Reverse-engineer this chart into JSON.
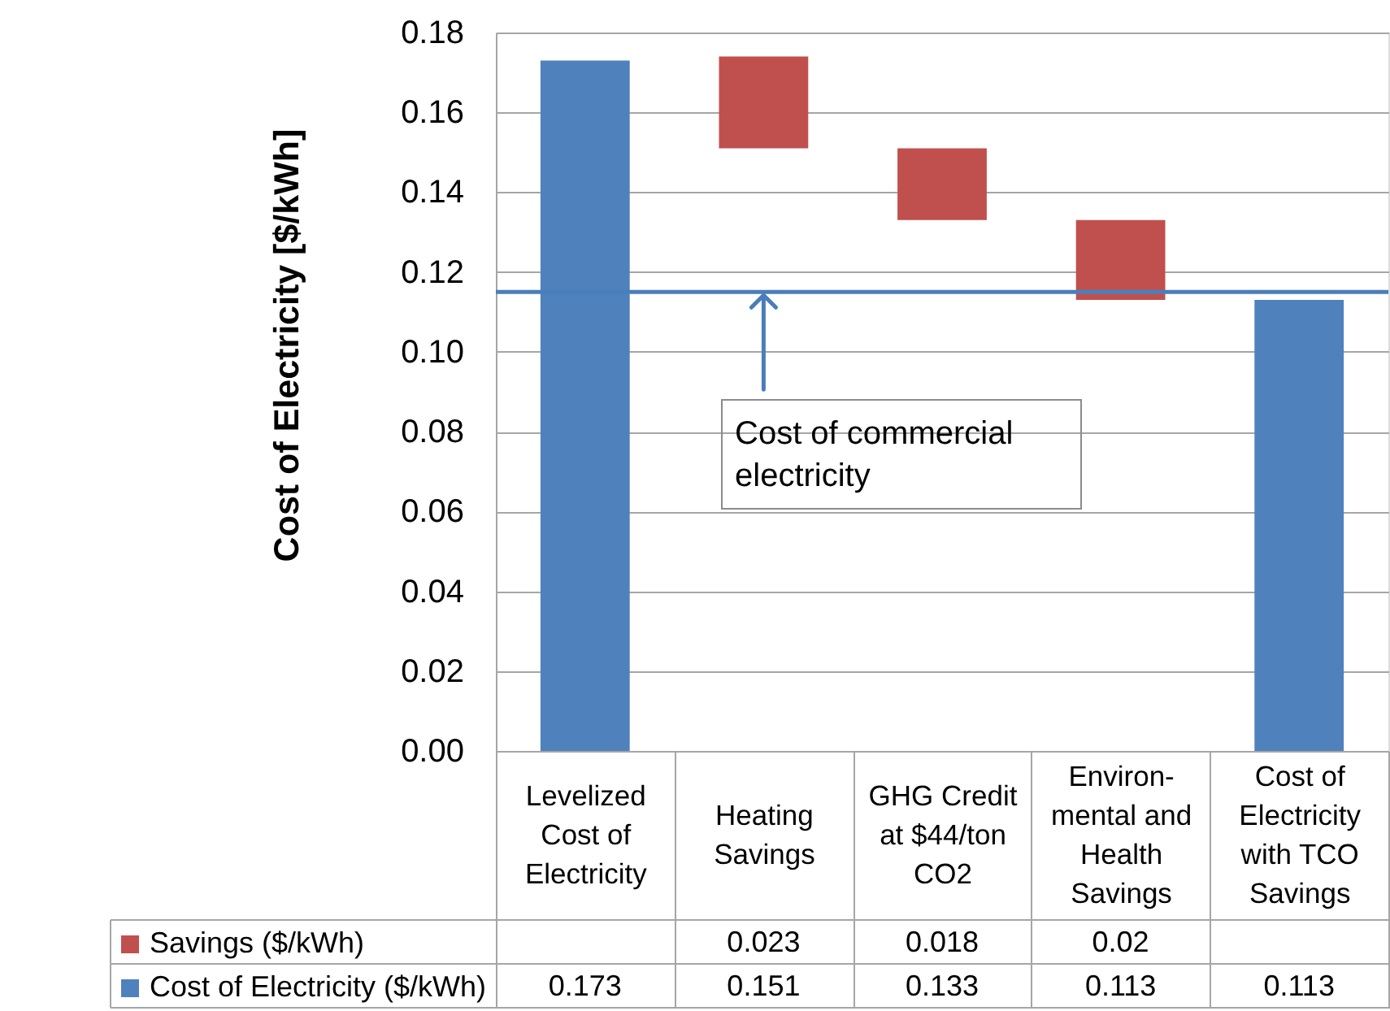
{
  "chart_data": {
    "type": "bar",
    "ylabel": "Cost of Electricity [$/kWh]",
    "categories": [
      "Levelized Cost of Electricity",
      "Heating Savings",
      "GHG Credit at $44/ton CO2",
      "Environ-mental and Health Savings",
      "Cost of Electricity with TCO Savings"
    ],
    "series": [
      {
        "name": "Savings ($/kWh)",
        "color": "#c0504d",
        "values": [
          null,
          0.023,
          0.018,
          0.02,
          null
        ],
        "base": [
          null,
          0.151,
          0.133,
          0.113,
          null
        ],
        "value_labels": [
          null,
          "0.023",
          "0.018",
          "0.02",
          null
        ]
      },
      {
        "name": "Cost of Electricity ($/kWh)",
        "color": "#4f81bd",
        "values": [
          0.173,
          null,
          null,
          null,
          0.113
        ],
        "value_labels": [
          "0.173",
          "0.151",
          "0.133",
          "0.113",
          "0.113"
        ]
      }
    ],
    "ylim": [
      0,
      0.18
    ],
    "yticks": [
      {
        "value": 0,
        "label": "0.00"
      },
      0.02,
      0.04,
      0.06,
      0.08,
      {
        "value": 0.1,
        "label": "0.10"
      },
      0.12,
      0.14,
      0.16,
      0.18
    ],
    "grid": "y",
    "legend": "bottom left",
    "ref_lines": [
      {
        "axis": "y",
        "value": 0.115,
        "color": "#4a7ebb"
      }
    ],
    "annotations": [
      {
        "text": "Cost of commercial electricity",
        "x": "Heating Savings",
        "y": 0.115
      }
    ]
  }
}
